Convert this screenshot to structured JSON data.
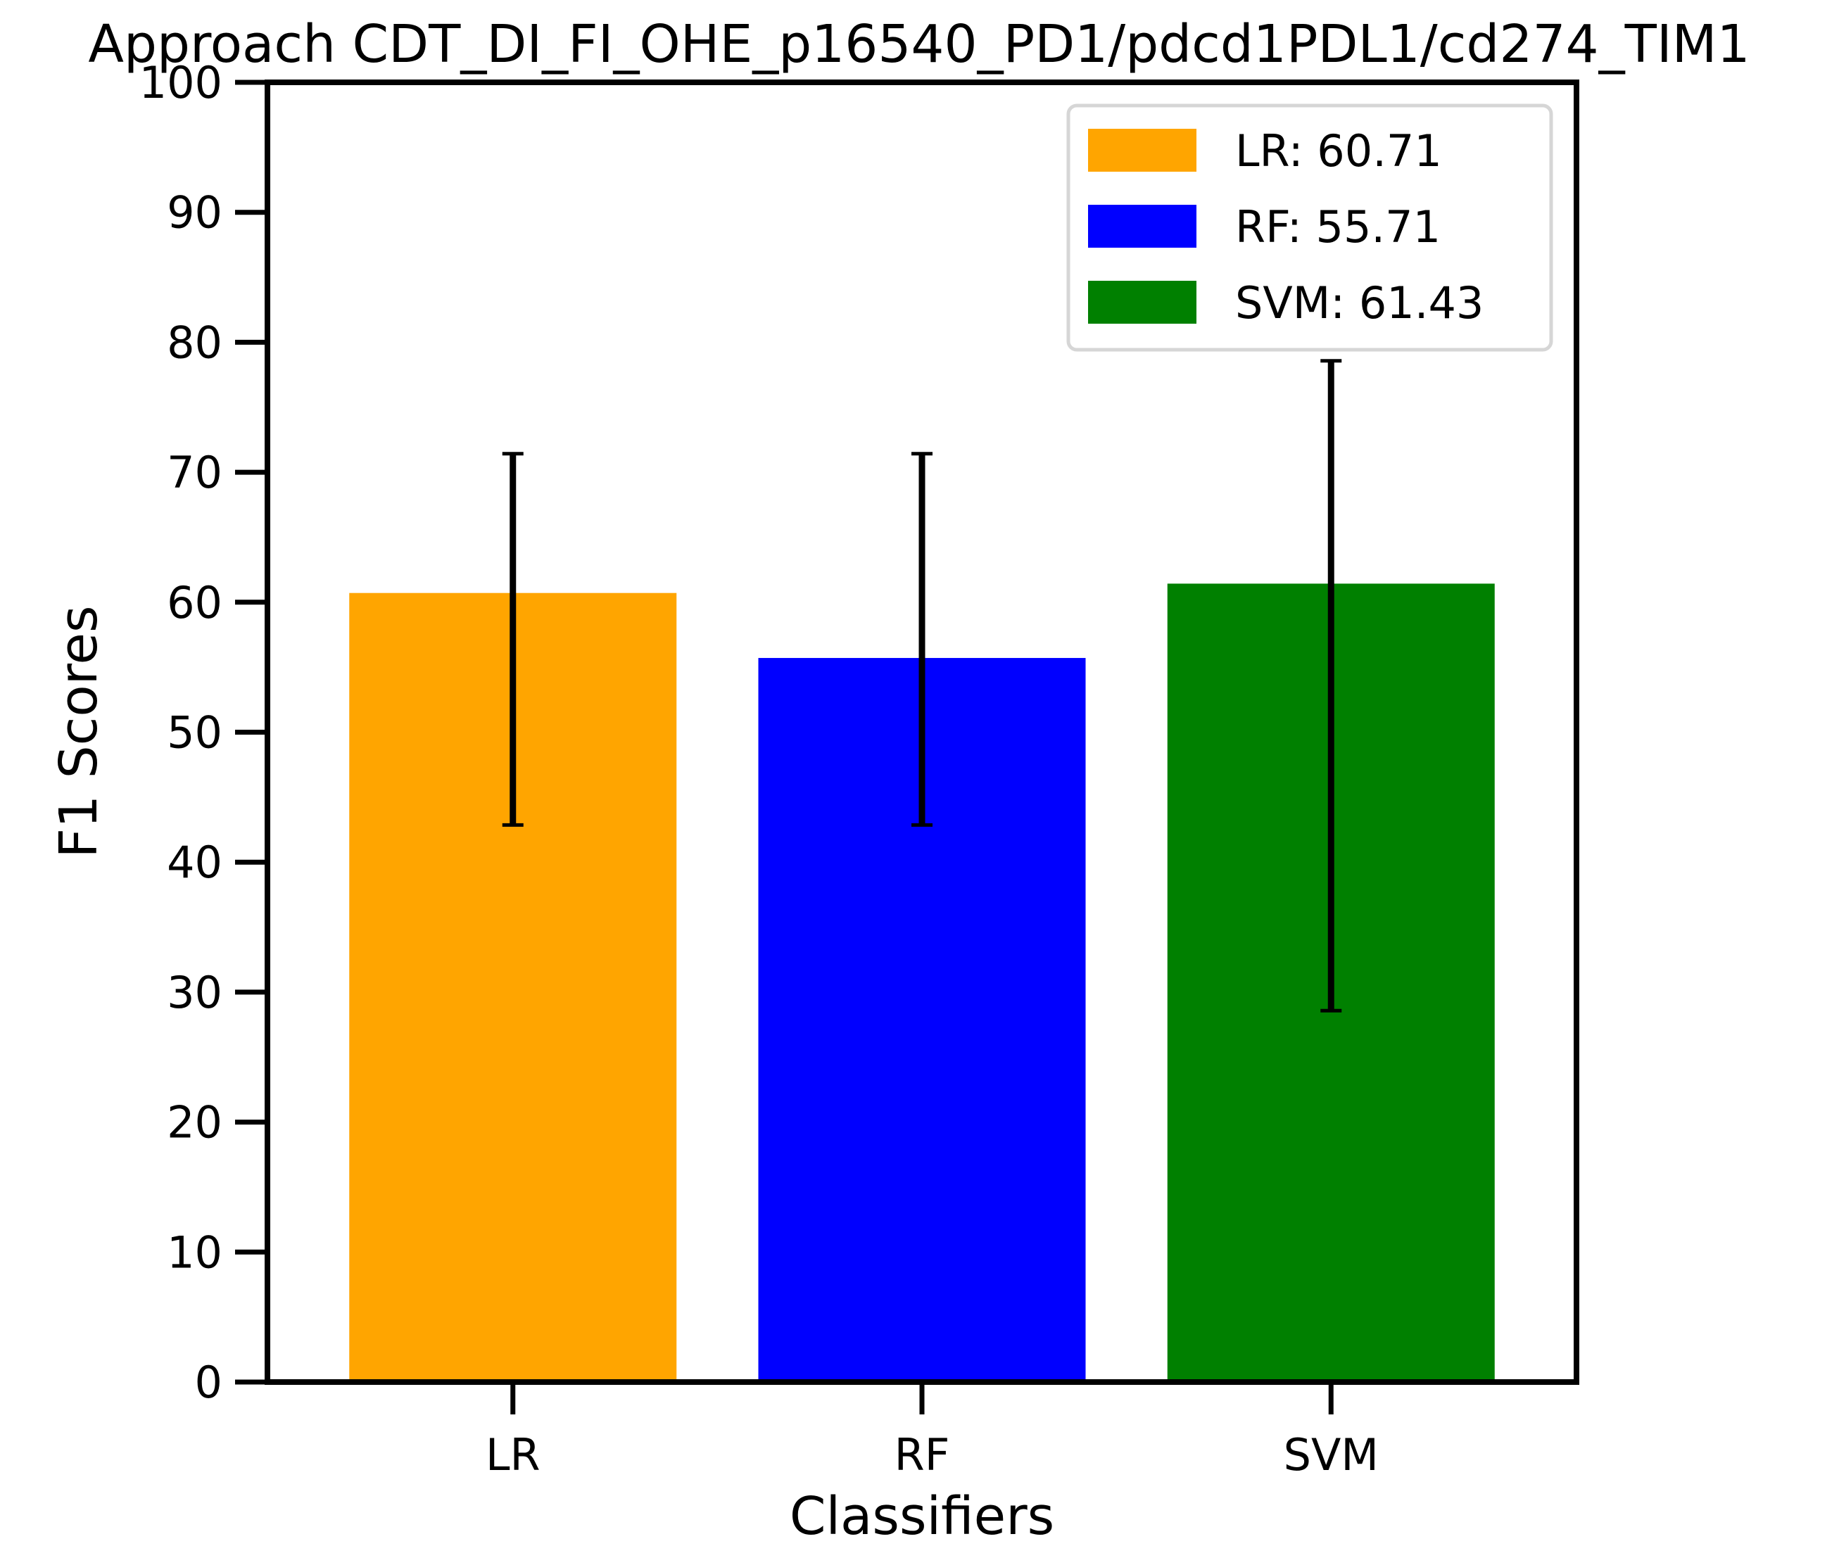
{
  "chart_data": {
    "type": "bar",
    "title": "Approach CDT_DI_FI_OHE_p16540_PD1/pdcd1PDL1/cd274_TIM1",
    "xlabel": "Classifiers",
    "ylabel": "F1 Scores",
    "categories": [
      "LR",
      "RF",
      "SVM"
    ],
    "values": [
      60.71,
      55.71,
      61.43
    ],
    "error_low": [
      42.86,
      42.86,
      28.57
    ],
    "error_high": [
      71.43,
      71.43,
      78.57
    ],
    "colors": [
      "#ffa500",
      "#0000ff",
      "#008000"
    ],
    "ylim": [
      0,
      100
    ],
    "yticks": [
      0,
      10,
      20,
      30,
      40,
      50,
      60,
      70,
      80,
      90,
      100
    ],
    "grid": false,
    "legend": {
      "position": "top-right",
      "entries": [
        "LR: 60.71",
        "RF: 55.71",
        "SVM: 61.43"
      ]
    }
  }
}
